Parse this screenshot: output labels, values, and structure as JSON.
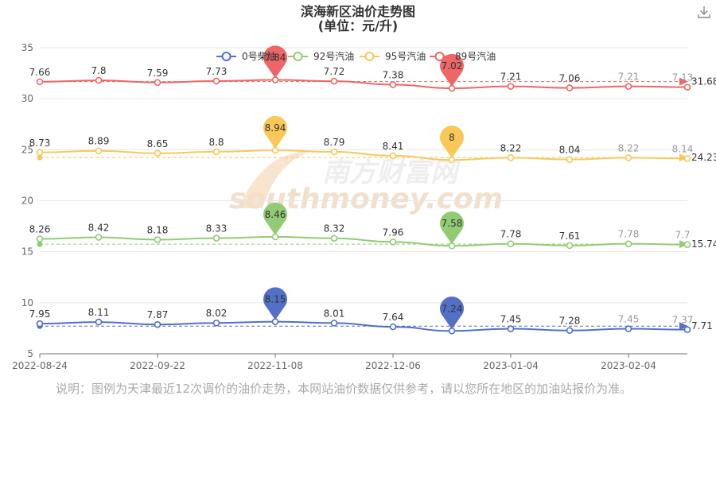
{
  "chart_data": {
    "type": "line",
    "title": "滨海新区油价走势图",
    "subtitle": "(单位：元/升)",
    "ylim": [
      5,
      35
    ],
    "yticks": [
      5,
      10,
      15,
      20,
      25,
      30,
      35
    ],
    "xticks": [
      "2022-08-24",
      "2022-09-22",
      "2022-11-08",
      "2022-12-06",
      "2023-01-04",
      "2023-02-04"
    ],
    "grid": true,
    "legend_position": "top",
    "series": [
      {
        "name": "0号柴油",
        "color": "#5470c6",
        "values": [
          7.95,
          8.11,
          7.87,
          8.02,
          8.15,
          8.01,
          7.64,
          7.24,
          7.45,
          7.28,
          7.45,
          7.37
        ],
        "max": {
          "label": "8.15",
          "index": 4
        },
        "min": {
          "label": "7.24",
          "index": 7
        },
        "average": {
          "label": "7.71",
          "value": 7.71
        }
      },
      {
        "name": "92号汽油",
        "color": "#91cc75",
        "values": [
          8.26,
          8.42,
          8.18,
          8.33,
          8.46,
          8.32,
          7.96,
          7.58,
          7.78,
          7.61,
          7.78,
          7.7
        ],
        "max": {
          "label": "8.46",
          "index": 4
        },
        "min": {
          "label": "7.58",
          "index": 7
        },
        "average": {
          "label": "15.74",
          "value": 15.74
        }
      },
      {
        "name": "95号汽油",
        "color": "#fac858",
        "values": [
          8.73,
          8.89,
          8.65,
          8.8,
          8.94,
          8.79,
          8.41,
          8,
          8.22,
          8.04,
          8.22,
          8.14
        ],
        "max": {
          "label": "8.94",
          "index": 4
        },
        "min": {
          "label": "8",
          "index": 7
        },
        "average": {
          "label": "24.23",
          "value": 24.23
        }
      },
      {
        "name": "89号汽油",
        "color": "#ee6666",
        "values": [
          7.66,
          7.8,
          7.59,
          7.73,
          7.84,
          7.72,
          7.38,
          7.02,
          7.21,
          7.06,
          7.21,
          7.13
        ],
        "max": {
          "label": "7.84",
          "index": 4
        },
        "min": {
          "label": "7.02",
          "index": 7
        },
        "average": {
          "label": "31.68",
          "value": 31.68
        }
      }
    ],
    "stack_offsets": [
      0,
      8,
      16,
      24
    ]
  },
  "watermark": {
    "cn": "南方财富网",
    "en": "southmoney.com"
  },
  "note": "说明：图例为天津最近12次调价的油价走势，本网站油价数据仅供参考，请以您所在地区的加油站报价为准。",
  "icons": {
    "download": "download-icon"
  }
}
